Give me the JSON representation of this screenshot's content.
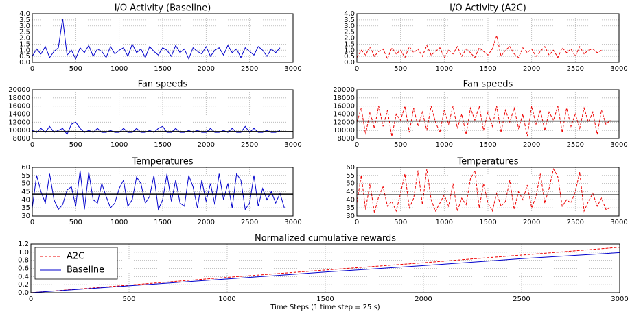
{
  "chart_data": [
    {
      "type": "line",
      "title": "I/O Activity (Baseline)",
      "x": [
        0,
        50,
        100,
        150,
        200,
        250,
        300,
        350,
        400,
        450,
        500,
        550,
        600,
        650,
        700,
        750,
        800,
        850,
        900,
        950,
        1000,
        1050,
        1100,
        1150,
        1200,
        1250,
        1300,
        1350,
        1400,
        1450,
        1500,
        1550,
        1600,
        1650,
        1700,
        1750,
        1800,
        1850,
        1900,
        1950,
        2000,
        2050,
        2100,
        2150,
        2200,
        2250,
        2300,
        2350,
        2400,
        2450,
        2500,
        2550,
        2600,
        2650,
        2700,
        2750,
        2800,
        2850,
        2900,
        2950,
        3000
      ],
      "series": [
        {
          "color": "#0000cc",
          "linestyle": "solid",
          "values": [
            0.5,
            1.1,
            0.7,
            1.3,
            0.4,
            0.9,
            1.2,
            3.6,
            0.6,
            1.0,
            0.3,
            1.2,
            0.8,
            1.4,
            0.5,
            1.1,
            0.9,
            0.4,
            1.3,
            0.7,
            1.0,
            1.2,
            0.5,
            1.5,
            0.8,
            1.1,
            0.4,
            1.3,
            0.9,
            0.6,
            1.2,
            1.0,
            0.5,
            1.4,
            0.8,
            1.1,
            0.3,
            1.2,
            0.9,
            0.7,
            1.3,
            0.5,
            1.0,
            1.2,
            0.6,
            1.4,
            0.8,
            1.1,
            0.4,
            1.2,
            0.9,
            0.6,
            1.3,
            1.0,
            0.5,
            1.1,
            0.8,
            1.2,
            null,
            null,
            null
          ]
        }
      ],
      "xlim": [
        0,
        3000
      ],
      "xticks": [
        0,
        500,
        1000,
        1500,
        2000,
        2500,
        3000
      ],
      "ylim": [
        0,
        4
      ],
      "yticks": [
        {
          "value": 0,
          "label": "0.0"
        },
        0.5,
        {
          "value": 1,
          "label": "1.0"
        },
        1.5,
        {
          "value": 2,
          "label": "2.0"
        },
        2.5,
        {
          "value": 3,
          "label": "3.0"
        },
        3.5,
        {
          "value": 4,
          "label": "4.0"
        }
      ],
      "grid": true
    },
    {
      "type": "line",
      "title": "I/O Activity (A2C)",
      "x": [
        0,
        50,
        100,
        150,
        200,
        250,
        300,
        350,
        400,
        450,
        500,
        550,
        600,
        650,
        700,
        750,
        800,
        850,
        900,
        950,
        1000,
        1050,
        1100,
        1150,
        1200,
        1250,
        1300,
        1350,
        1400,
        1450,
        1500,
        1550,
        1600,
        1650,
        1700,
        1750,
        1800,
        1850,
        1900,
        1950,
        2000,
        2050,
        2100,
        2150,
        2200,
        2250,
        2300,
        2350,
        2400,
        2450,
        2500,
        2550,
        2600,
        2650,
        2700,
        2750,
        2800,
        2850,
        2900,
        2950,
        3000
      ],
      "series": [
        {
          "color": "#ee0000",
          "linestyle": "dashed",
          "values": [
            0.4,
            1.0,
            0.6,
            1.3,
            0.5,
            0.9,
            1.1,
            0.3,
            1.2,
            0.7,
            1.0,
            0.4,
            1.3,
            0.8,
            1.1,
            0.5,
            1.4,
            0.6,
            0.9,
            1.2,
            0.4,
            1.0,
            0.7,
            1.3,
            0.5,
            1.1,
            0.8,
            0.4,
            1.2,
            0.9,
            0.6,
            1.1,
            2.2,
            0.5,
            1.0,
            1.3,
            0.7,
            0.4,
            1.2,
            0.8,
            1.1,
            0.5,
            0.9,
            1.3,
            0.6,
            1.0,
            0.4,
            1.2,
            0.8,
            1.1,
            0.5,
            1.3,
            0.7,
            1.0,
            1.1,
            0.8,
            1.0,
            null,
            null,
            null,
            null
          ]
        }
      ],
      "xlim": [
        0,
        3000
      ],
      "xticks": [
        0,
        500,
        1000,
        1500,
        2000,
        2500,
        3000
      ],
      "ylim": [
        0,
        4
      ],
      "yticks": [
        {
          "value": 0,
          "label": "0.0"
        },
        0.5,
        {
          "value": 1,
          "label": "1.0"
        },
        1.5,
        {
          "value": 2,
          "label": "2.0"
        },
        2.5,
        {
          "value": 3,
          "label": "3.0"
        },
        3.5,
        {
          "value": 4,
          "label": "4.0"
        }
      ],
      "grid": true
    },
    {
      "type": "line",
      "title": "Fan speeds",
      "x": [
        0,
        50,
        100,
        150,
        200,
        250,
        300,
        350,
        400,
        450,
        500,
        550,
        600,
        650,
        700,
        750,
        800,
        850,
        900,
        950,
        1000,
        1050,
        1100,
        1150,
        1200,
        1250,
        1300,
        1350,
        1400,
        1450,
        1500,
        1550,
        1600,
        1650,
        1700,
        1750,
        1800,
        1850,
        1900,
        1950,
        2000,
        2050,
        2100,
        2150,
        2200,
        2250,
        2300,
        2350,
        2400,
        2450,
        2500,
        2550,
        2600,
        2650,
        2700,
        2750,
        2800,
        2850,
        2900,
        2950,
        3000
      ],
      "series": [
        {
          "color": "#0000cc",
          "linestyle": "solid",
          "values": [
            10000,
            9500,
            10500,
            9500,
            11000,
            9500,
            10000,
            10500,
            9000,
            11500,
            12000,
            10500,
            9500,
            10000,
            9500,
            10500,
            9500,
            9500,
            10000,
            9500,
            9500,
            10500,
            9500,
            9500,
            10500,
            9500,
            9500,
            10000,
            9500,
            10500,
            11000,
            9500,
            9500,
            10500,
            9500,
            9500,
            10000,
            9500,
            10000,
            9500,
            9500,
            10500,
            9500,
            9500,
            10000,
            9500,
            10500,
            9500,
            9500,
            11000,
            9500,
            10500,
            9500,
            9500,
            10000,
            9500,
            9500,
            10000,
            null,
            null,
            null
          ]
        },
        {
          "color": "#000000",
          "linestyle": "solid",
          "x": [
            0,
            3000
          ],
          "values": [
            9700,
            9700
          ]
        }
      ],
      "xlim": [
        0,
        3000
      ],
      "xticks": [
        0,
        500,
        1000,
        1500,
        2000,
        2500,
        3000
      ],
      "ylim": [
        8000,
        20000
      ],
      "yticks": [
        8000,
        10000,
        12000,
        14000,
        16000,
        18000,
        20000
      ],
      "grid": true
    },
    {
      "type": "line",
      "title": "Fan speeds",
      "x": [
        0,
        50,
        100,
        150,
        200,
        250,
        300,
        350,
        400,
        450,
        500,
        550,
        600,
        650,
        700,
        750,
        800,
        850,
        900,
        950,
        1000,
        1050,
        1100,
        1150,
        1200,
        1250,
        1300,
        1350,
        1400,
        1450,
        1500,
        1550,
        1600,
        1650,
        1700,
        1750,
        1800,
        1850,
        1900,
        1950,
        2000,
        2050,
        2100,
        2150,
        2200,
        2250,
        2300,
        2350,
        2400,
        2450,
        2500,
        2550,
        2600,
        2650,
        2700,
        2750,
        2800,
        2850,
        2900,
        2950,
        3000
      ],
      "series": [
        {
          "color": "#ee0000",
          "linestyle": "dashed",
          "values": [
            12000,
            15500,
            9000,
            14500,
            10500,
            16000,
            11000,
            15000,
            8500,
            14000,
            12500,
            16000,
            9500,
            15500,
            11000,
            14500,
            10000,
            16000,
            12000,
            9500,
            15000,
            11500,
            16000,
            10500,
            14000,
            9000,
            15500,
            12500,
            16000,
            10000,
            14500,
            11000,
            16000,
            9500,
            15000,
            12000,
            15500,
            10500,
            14000,
            8500,
            16000,
            11500,
            15000,
            10000,
            14500,
            12500,
            16000,
            9500,
            15500,
            11000,
            14000,
            10500,
            15500,
            12000,
            14500,
            9000,
            15000,
            11500,
            12500,
            null,
            null
          ]
        },
        {
          "color": "#000000",
          "linestyle": "solid",
          "x": [
            0,
            3000
          ],
          "values": [
            12300,
            12300
          ]
        }
      ],
      "xlim": [
        0,
        3000
      ],
      "xticks": [
        0,
        500,
        1000,
        1500,
        2000,
        2500,
        3000
      ],
      "ylim": [
        8000,
        20000
      ],
      "yticks": [
        8000,
        10000,
        12000,
        14000,
        16000,
        18000,
        20000
      ],
      "grid": true
    },
    {
      "type": "line",
      "title": "Temperatures",
      "x": [
        0,
        50,
        100,
        150,
        200,
        250,
        300,
        350,
        400,
        450,
        500,
        550,
        600,
        650,
        700,
        750,
        800,
        850,
        900,
        950,
        1000,
        1050,
        1100,
        1150,
        1200,
        1250,
        1300,
        1350,
        1400,
        1450,
        1500,
        1550,
        1600,
        1650,
        1700,
        1750,
        1800,
        1850,
        1900,
        1950,
        2000,
        2050,
        2100,
        2150,
        2200,
        2250,
        2300,
        2350,
        2400,
        2450,
        2500,
        2550,
        2600,
        2650,
        2700,
        2750,
        2800,
        2850,
        2900,
        2950,
        3000
      ],
      "series": [
        {
          "color": "#0000cc",
          "linestyle": "solid",
          "values": [
            35,
            55,
            45,
            38,
            56,
            40,
            34,
            37,
            46,
            48,
            36,
            58,
            34,
            57,
            40,
            38,
            50,
            42,
            35,
            38,
            47,
            52,
            36,
            40,
            54,
            50,
            38,
            42,
            55,
            34,
            40,
            56,
            39,
            52,
            38,
            36,
            55,
            48,
            35,
            52,
            39,
            50,
            37,
            56,
            40,
            50,
            35,
            56,
            52,
            34,
            38,
            55,
            36,
            47,
            40,
            45,
            38,
            44,
            35,
            null,
            null
          ]
        },
        {
          "color": "#000000",
          "linestyle": "solid",
          "x": [
            0,
            3000
          ],
          "values": [
            43.5,
            43.5
          ]
        }
      ],
      "xlim": [
        0,
        3000
      ],
      "xticks": [
        0,
        500,
        1000,
        1500,
        2000,
        2500,
        3000
      ],
      "ylim": [
        30,
        60
      ],
      "yticks": [
        30,
        35,
        40,
        45,
        50,
        55,
        60
      ],
      "grid": true
    },
    {
      "type": "line",
      "title": "Temperatures",
      "x": [
        0,
        50,
        100,
        150,
        200,
        250,
        300,
        350,
        400,
        450,
        500,
        550,
        600,
        650,
        700,
        750,
        800,
        850,
        900,
        950,
        1000,
        1050,
        1100,
        1150,
        1200,
        1250,
        1300,
        1350,
        1400,
        1450,
        1500,
        1550,
        1600,
        1650,
        1700,
        1750,
        1800,
        1850,
        1900,
        1950,
        2000,
        2050,
        2100,
        2150,
        2200,
        2250,
        2300,
        2350,
        2400,
        2450,
        2500,
        2550,
        2600,
        2650,
        2700,
        2750,
        2800,
        2850,
        2900,
        2950,
        3000
      ],
      "series": [
        {
          "color": "#ee0000",
          "linestyle": "dashed",
          "values": [
            38,
            55,
            34,
            50,
            32,
            42,
            48,
            36,
            39,
            33,
            44,
            56,
            35,
            41,
            58,
            37,
            59,
            40,
            33,
            38,
            43,
            36,
            50,
            33,
            41,
            37,
            53,
            58,
            35,
            50,
            38,
            33,
            44,
            36,
            39,
            52,
            34,
            45,
            40,
            49,
            35,
            42,
            56,
            38,
            47,
            59,
            54,
            36,
            40,
            38,
            45,
            57,
            33,
            39,
            44,
            36,
            41,
            34,
            35,
            null,
            null
          ]
        },
        {
          "color": "#000000",
          "linestyle": "solid",
          "x": [
            0,
            3000
          ],
          "values": [
            43,
            43
          ]
        }
      ],
      "xlim": [
        0,
        3000
      ],
      "xticks": [
        0,
        500,
        1000,
        1500,
        2000,
        2500,
        3000
      ],
      "ylim": [
        30,
        60
      ],
      "yticks": [
        30,
        35,
        40,
        45,
        50,
        55,
        60
      ],
      "grid": true
    },
    {
      "type": "line",
      "title": "Normalized cumulative rewards",
      "xlabel": "Time Steps (1 time step = 25 s)",
      "x": [
        0,
        500,
        1000,
        1500,
        2000,
        2500,
        3000
      ],
      "series": [
        {
          "name": "A2C",
          "color": "#ee0000",
          "linestyle": "dashed",
          "values": [
            0,
            0.19,
            0.38,
            0.56,
            0.74,
            0.93,
            1.12
          ]
        },
        {
          "name": "Baseline",
          "color": "#0000cc",
          "linestyle": "solid",
          "values": [
            0,
            0.17,
            0.34,
            0.51,
            0.67,
            0.84,
            0.99
          ]
        }
      ],
      "xlim": [
        0,
        3000
      ],
      "xticks": [
        0,
        500,
        1000,
        1500,
        2000,
        2500,
        3000
      ],
      "ylim": [
        0,
        1.2
      ],
      "yticks": [
        {
          "value": 0,
          "label": "0.0"
        },
        0.2,
        0.4,
        0.6,
        0.8,
        {
          "value": 1,
          "label": "1.0"
        },
        1.2
      ],
      "grid": true,
      "legend": "upper left"
    }
  ]
}
